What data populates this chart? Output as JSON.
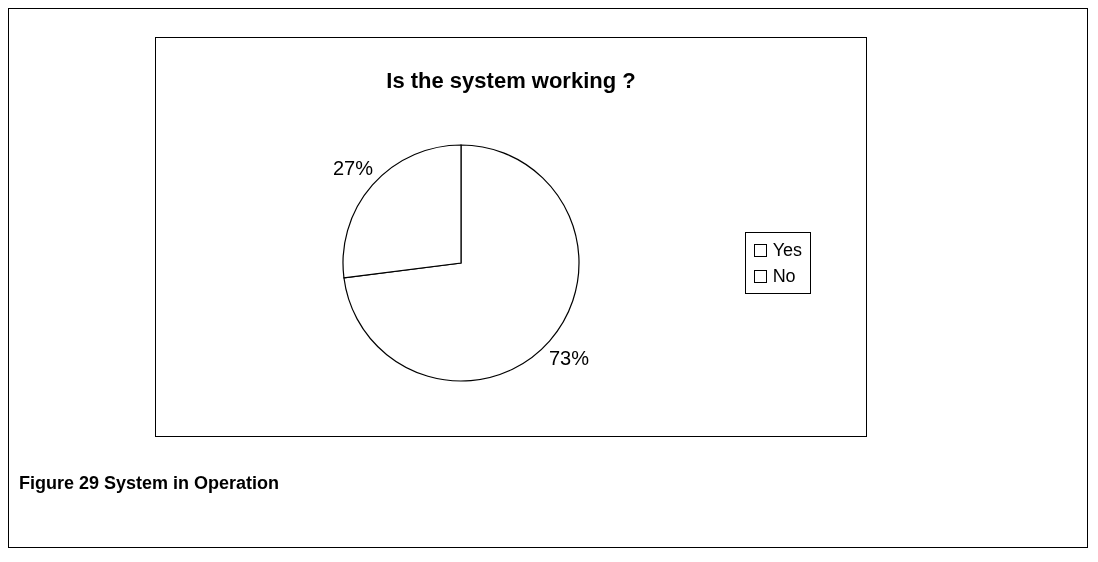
{
  "chart_data": {
    "type": "pie",
    "title": "Is the system working ?",
    "categories": [
      "Yes",
      "No"
    ],
    "values": [
      73,
      27
    ],
    "colors": [
      "#ffffff",
      "#ffffff"
    ],
    "value_labels": [
      "73%",
      "27%"
    ],
    "legend": "right",
    "annotations": [
      "Figure 29 System in Operation"
    ]
  }
}
